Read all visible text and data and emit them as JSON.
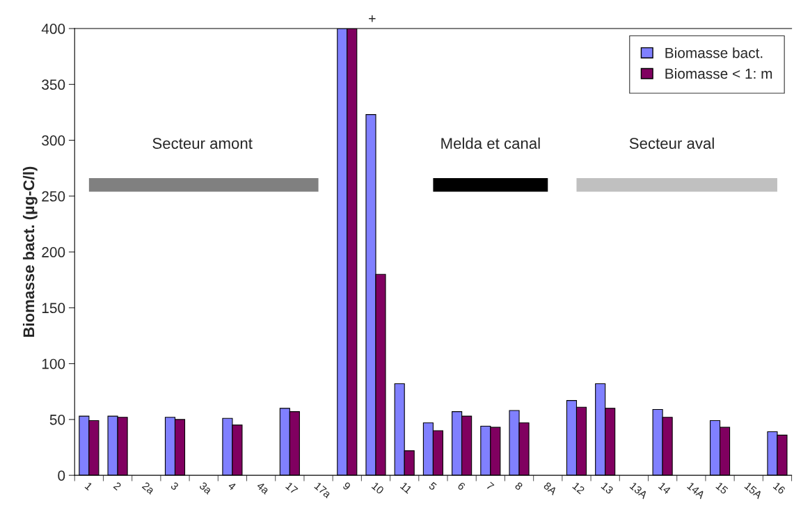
{
  "chart_data": {
    "type": "bar",
    "ylabel": "Biomasse bact. (μg-C/l)",
    "categories": [
      "1",
      "2",
      "2a",
      "3",
      "3a",
      "4",
      "4a",
      "17",
      "17a",
      "9",
      "10",
      "11",
      "5",
      "6",
      "7",
      "8",
      "8A",
      "12",
      "13",
      "13A",
      "14",
      "14A",
      "15",
      "15A",
      "16"
    ],
    "series": [
      {
        "name": "Biomasse bact.",
        "color": "#8080ff",
        "values": [
          53,
          53,
          null,
          52,
          null,
          51,
          null,
          60,
          null,
          400,
          323,
          82,
          47,
          57,
          44,
          58,
          null,
          67,
          82,
          null,
          59,
          null,
          49,
          null,
          39
        ]
      },
      {
        "name": "Biomasse < 1: m",
        "color": "#800060",
        "values": [
          49,
          52,
          null,
          50,
          null,
          45,
          null,
          57,
          null,
          400,
          180,
          22,
          40,
          53,
          43,
          47,
          null,
          61,
          60,
          null,
          52,
          null,
          43,
          null,
          36
        ]
      },
      {
        "type": "line",
        "color": "#808080",
        "values": [
          260,
          260,
          260,
          260,
          260,
          260,
          260,
          260,
          260,
          null,
          null,
          null,
          null,
          null,
          null,
          null,
          null,
          null,
          null,
          null,
          null,
          null,
          null,
          null,
          null
        ]
      },
      {
        "type": "line",
        "color": "#000000",
        "values": [
          null,
          null,
          null,
          null,
          null,
          null,
          null,
          null,
          null,
          null,
          null,
          null,
          260,
          260,
          260,
          260,
          260,
          null,
          null,
          null,
          null,
          null,
          null,
          null,
          null
        ]
      },
      {
        "type": "line",
        "color": "#c0c0c0",
        "values": [
          null,
          null,
          null,
          null,
          null,
          null,
          null,
          null,
          null,
          null,
          null,
          null,
          null,
          null,
          null,
          null,
          null,
          260,
          260,
          260,
          260,
          260,
          260,
          260,
          260
        ]
      }
    ],
    "ylim": [
      0,
      400
    ],
    "yticks": [
      0,
      50,
      100,
      150,
      200,
      250,
      300,
      350,
      400
    ],
    "grid": false,
    "legend": "top right",
    "annotations": [
      "Secteur amont",
      "Melda et canal",
      "Secteur aval",
      "+"
    ]
  }
}
